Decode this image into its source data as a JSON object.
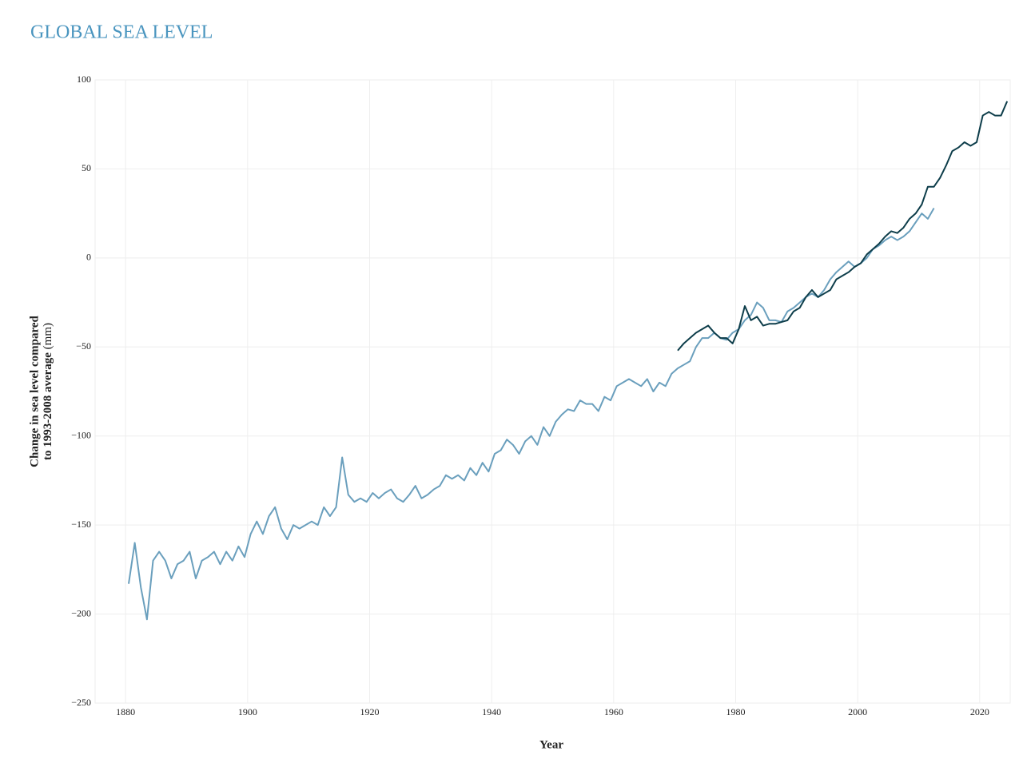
{
  "chart_data": {
    "type": "line",
    "title": "GLOBAL SEA LEVEL",
    "x_label": "Year",
    "y_label_lines": [
      "Change in sea level compared",
      "to 1993-2008 average"
    ],
    "y_unit": "(mm)",
    "xlim": [
      1875,
      2025
    ],
    "ylim": [
      -250,
      100
    ],
    "xticks": [
      1880,
      1900,
      1920,
      1940,
      1960,
      1980,
      2000,
      2020
    ],
    "yticks": [
      {
        "value": -250,
        "label": "−250"
      },
      {
        "value": -200,
        "label": "−200"
      },
      {
        "value": -150,
        "label": "−150"
      },
      {
        "value": -100,
        "label": "−100"
      },
      {
        "value": -50,
        "label": "−50"
      },
      0,
      50,
      100
    ],
    "grid": true,
    "series": [
      {
        "color": "#6a9fbd",
        "x": [
          1880.5,
          1881.5,
          1882.5,
          1883.5,
          1884.5,
          1885.5,
          1886.5,
          1887.5,
          1888.5,
          1889.5,
          1890.5,
          1891.5,
          1892.5,
          1893.5,
          1894.5,
          1895.5,
          1896.5,
          1897.5,
          1898.5,
          1899.5,
          1900.5,
          1901.5,
          1902.5,
          1903.5,
          1904.5,
          1905.5,
          1906.5,
          1907.5,
          1908.5,
          1909.5,
          1910.5,
          1911.5,
          1912.5,
          1913.5,
          1914.5,
          1915.5,
          1916.5,
          1917.5,
          1918.5,
          1919.5,
          1920.5,
          1921.5,
          1922.5,
          1923.5,
          1924.5,
          1925.5,
          1926.5,
          1927.5,
          1928.5,
          1929.5,
          1930.5,
          1931.5,
          1932.5,
          1933.5,
          1934.5,
          1935.5,
          1936.5,
          1937.5,
          1938.5,
          1939.5,
          1940.5,
          1941.5,
          1942.5,
          1943.5,
          1944.5,
          1945.5,
          1946.5,
          1947.5,
          1948.5,
          1949.5,
          1950.5,
          1951.5,
          1952.5,
          1953.5,
          1954.5,
          1955.5,
          1956.5,
          1957.5,
          1958.5,
          1959.5,
          1960.5,
          1961.5,
          1962.5,
          1963.5,
          1964.5,
          1965.5,
          1966.5,
          1967.5,
          1968.5,
          1969.5,
          1970.5,
          1971.5,
          1972.5,
          1973.5,
          1974.5,
          1975.5,
          1976.5,
          1977.5,
          1978.5,
          1979.5,
          1980.5,
          1981.5,
          1982.5,
          1983.5,
          1984.5,
          1985.5,
          1986.5,
          1987.5,
          1988.5,
          1989.5,
          1990.5,
          1991.5,
          1992.5,
          1993.5,
          1994.5,
          1995.5,
          1996.5,
          1997.5,
          1998.5,
          1999.5,
          2000.5,
          2001.5,
          2002.5,
          2003.5,
          2004.5,
          2005.5,
          2006.5,
          2007.5,
          2008.5,
          2009.5,
          2010.5,
          2011.5,
          2012.5
        ],
        "values": [
          -183,
          -160,
          -185,
          -203,
          -170,
          -165,
          -170,
          -180,
          -172,
          -170,
          -165,
          -180,
          -170,
          -168,
          -165,
          -172,
          -165,
          -170,
          -162,
          -168,
          -155,
          -148,
          -155,
          -145,
          -140,
          -152,
          -158,
          -150,
          -152,
          -150,
          -148,
          -150,
          -140,
          -145,
          -140,
          -112,
          -133,
          -137,
          -135,
          -137,
          -132,
          -135,
          -132,
          -130,
          -135,
          -137,
          -133,
          -128,
          -135,
          -133,
          -130,
          -128,
          -122,
          -124,
          -122,
          -125,
          -118,
          -122,
          -115,
          -120,
          -110,
          -108,
          -102,
          -105,
          -110,
          -103,
          -100,
          -105,
          -95,
          -100,
          -92,
          -88,
          -85,
          -86,
          -80,
          -82,
          -82,
          -86,
          -78,
          -80,
          -72,
          -70,
          -68,
          -70,
          -72,
          -68,
          -75,
          -70,
          -72,
          -65,
          -62,
          -60,
          -58,
          -50,
          -45,
          -45,
          -42,
          -45,
          -46,
          -42,
          -40,
          -35,
          -32,
          -25,
          -28,
          -35,
          -35,
          -36,
          -30,
          -28,
          -25,
          -22,
          -20,
          -22,
          -18,
          -12,
          -8,
          -5,
          -2,
          -5,
          -3,
          0,
          5,
          7,
          10,
          12,
          10,
          12,
          15,
          20,
          25,
          22,
          28
        ]
      },
      {
        "color": "#0d3d4a",
        "x": [
          1970.5,
          1971.5,
          1972.5,
          1973.5,
          1974.5,
          1975.5,
          1976.5,
          1977.5,
          1978.5,
          1979.5,
          1980.5,
          1981.5,
          1982.5,
          1983.5,
          1984.5,
          1985.5,
          1986.5,
          1987.5,
          1988.5,
          1989.5,
          1990.5,
          1991.5,
          1992.5,
          1993.5,
          1994.5,
          1995.5,
          1996.5,
          1997.5,
          1998.5,
          1999.5,
          2000.5,
          2001.5,
          2002.5,
          2003.5,
          2004.5,
          2005.5,
          2006.5,
          2007.5,
          2008.5,
          2009.5,
          2010.5,
          2011.5,
          2012.5,
          2013.5,
          2014.5,
          2015.5,
          2016.5,
          2017.5,
          2018.5,
          2019.5,
          2020.5,
          2021.5,
          2022.5,
          2023.5,
          2024.5
        ],
        "values": [
          -52,
          -48,
          -45,
          -42,
          -40,
          -38,
          -42,
          -45,
          -45,
          -48,
          -40,
          -27,
          -35,
          -33,
          -38,
          -37,
          -37,
          -36,
          -35,
          -30,
          -28,
          -22,
          -18,
          -22,
          -20,
          -18,
          -12,
          -10,
          -8,
          -5,
          -3,
          2,
          5,
          8,
          12,
          15,
          14,
          17,
          22,
          25,
          30,
          40,
          40,
          45,
          52,
          60,
          62,
          65,
          63,
          65,
          80,
          82,
          80,
          80,
          88
        ]
      }
    ]
  }
}
